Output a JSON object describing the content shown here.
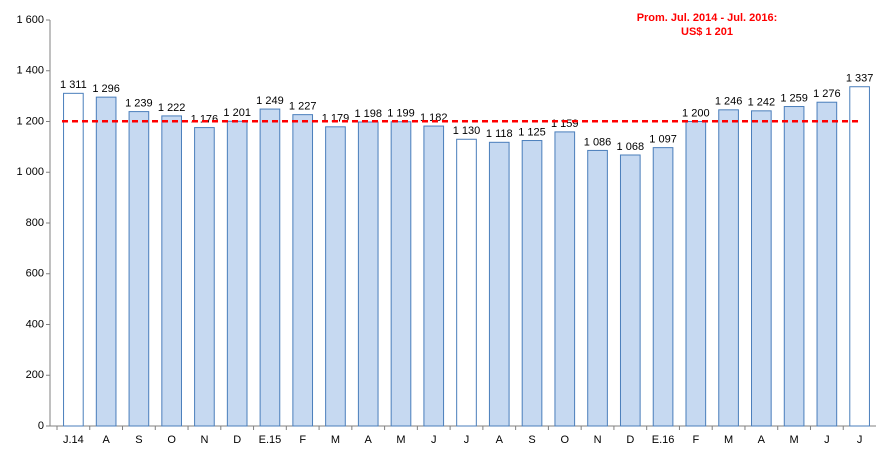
{
  "chart_data": {
    "type": "bar",
    "categories": [
      "J.14",
      "A",
      "S",
      "O",
      "N",
      "D",
      "E.15",
      "F",
      "M",
      "A",
      "M",
      "J",
      "J",
      "A",
      "S",
      "O",
      "N",
      "D",
      "E.16",
      "F",
      "M",
      "A",
      "M",
      "J",
      "J"
    ],
    "values": [
      1311,
      1296,
      1239,
      1222,
      1176,
      1201,
      1249,
      1227,
      1179,
      1198,
      1199,
      1182,
      1130,
      1118,
      1125,
      1159,
      1086,
      1068,
      1097,
      1200,
      1246,
      1242,
      1259,
      1276,
      1337
    ],
    "value_labels": [
      "1 311",
      "1 296",
      "1 239",
      "1 222",
      "1 176",
      "1 201",
      "1 249",
      "1 227",
      "1 179",
      "1 198",
      "1 199",
      "1 182",
      "1 130",
      "1 118",
      "1 125",
      "1 159",
      "1 086",
      "1 068",
      "1 097",
      "1 200",
      "1 246",
      "1 242",
      "1 259",
      "1 276",
      "1 337"
    ],
    "colors": [
      "#ffffff",
      "#c6d9f1",
      "#c6d9f1",
      "#c6d9f1",
      "#c6d9f1",
      "#c6d9f1",
      "#c6d9f1",
      "#c6d9f1",
      "#c6d9f1",
      "#c6d9f1",
      "#c6d9f1",
      "#c6d9f1",
      "#ffffff",
      "#c6d9f1",
      "#c6d9f1",
      "#c6d9f1",
      "#c6d9f1",
      "#c6d9f1",
      "#c6d9f1",
      "#c6d9f1",
      "#c6d9f1",
      "#c6d9f1",
      "#c6d9f1",
      "#c6d9f1",
      "#ffffff"
    ],
    "border_color": "#4a7ebb",
    "average": 1201,
    "average_color": "#ff0000",
    "annotation": [
      "Prom.  Jul. 2014 - Jul. 2016:",
      "US$ 1 201"
    ],
    "ylim": [
      0,
      1600
    ],
    "yticks": [
      0,
      200,
      400,
      600,
      800,
      {
        "value": 1000,
        "label": "1 000"
      },
      {
        "value": 1200,
        "label": "1 200"
      },
      {
        "value": 1400,
        "label": "1 400"
      },
      {
        "value": 1600,
        "label": "1 600"
      }
    ],
    "grid": false
  }
}
